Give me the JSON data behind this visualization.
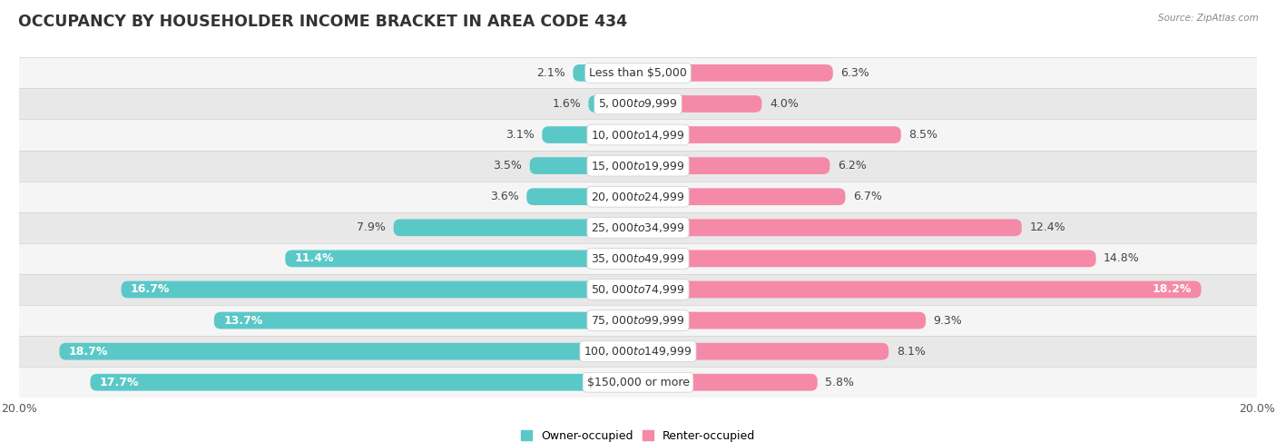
{
  "title": "OCCUPANCY BY HOUSEHOLDER INCOME BRACKET IN AREA CODE 434",
  "source": "Source: ZipAtlas.com",
  "categories": [
    "Less than $5,000",
    "$5,000 to $9,999",
    "$10,000 to $14,999",
    "$15,000 to $19,999",
    "$20,000 to $24,999",
    "$25,000 to $34,999",
    "$35,000 to $49,999",
    "$50,000 to $74,999",
    "$75,000 to $99,999",
    "$100,000 to $149,999",
    "$150,000 or more"
  ],
  "owner_values": [
    2.1,
    1.6,
    3.1,
    3.5,
    3.6,
    7.9,
    11.4,
    16.7,
    13.7,
    18.7,
    17.7
  ],
  "renter_values": [
    6.3,
    4.0,
    8.5,
    6.2,
    6.7,
    12.4,
    14.8,
    18.2,
    9.3,
    8.1,
    5.8
  ],
  "owner_color": "#5BC8C8",
  "renter_color": "#F589A8",
  "row_color_odd": "#f5f5f5",
  "row_color_even": "#e8e8e8",
  "separator_color": "#d0d0d0",
  "axis_max": 20.0,
  "title_fontsize": 12.5,
  "cat_label_fontsize": 9,
  "value_label_fontsize": 9,
  "tick_fontsize": 9,
  "legend_fontsize": 9,
  "bar_height": 0.55,
  "inside_owner_threshold": 10.0,
  "inside_renter_threshold": 15.0
}
